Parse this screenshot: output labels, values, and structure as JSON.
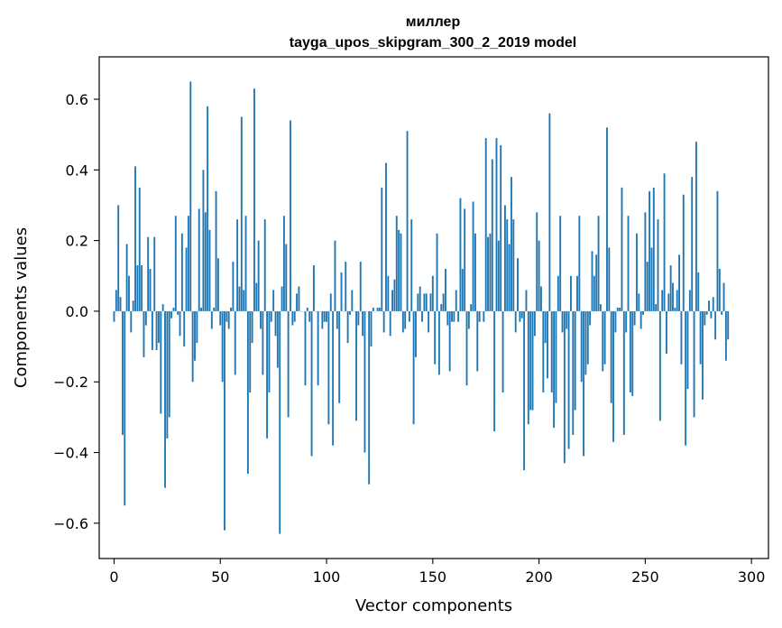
{
  "chart_data": {
    "type": "bar",
    "title": "миллер",
    "subtitle": "tayga_upos_skipgram_300_2_2019 model",
    "xlabel": "Vector components",
    "ylabel": "Components values",
    "xlim": [
      -7,
      308
    ],
    "ylim": [
      -0.7,
      0.72
    ],
    "xticks": [
      0,
      50,
      100,
      150,
      200,
      250,
      300
    ],
    "xtick_labels": [
      "0",
      "50",
      "100",
      "150",
      "200",
      "250",
      "300"
    ],
    "yticks": [
      -0.6,
      -0.4,
      -0.2,
      0.0,
      0.2,
      0.4,
      0.6
    ],
    "ytick_labels": [
      "−0.6",
      "−0.4",
      "−0.2",
      "0.0",
      "0.2",
      "0.4",
      "0.6"
    ],
    "grid": false,
    "bar_color": "#1f77b4",
    "values": [
      -0.03,
      0.06,
      0.3,
      0.04,
      -0.35,
      -0.55,
      0.19,
      0.1,
      -0.06,
      0.03,
      0.41,
      0.13,
      0.35,
      0.13,
      -0.13,
      -0.04,
      0.21,
      0.12,
      -0.11,
      0.21,
      -0.11,
      -0.09,
      -0.29,
      0.02,
      -0.5,
      -0.36,
      -0.3,
      -0.02,
      0.01,
      0.27,
      -0.01,
      -0.07,
      0.22,
      -0.1,
      0.18,
      0.27,
      0.65,
      -0.2,
      -0.14,
      -0.09,
      0.29,
      0.01,
      0.4,
      0.28,
      0.58,
      0.23,
      -0.05,
      0.01,
      0.34,
      0.15,
      -0.04,
      -0.2,
      -0.62,
      -0.03,
      -0.05,
      0.01,
      0.14,
      -0.18,
      0.26,
      0.07,
      0.55,
      0.06,
      0.27,
      -0.46,
      -0.23,
      -0.09,
      0.63,
      0.08,
      0.2,
      -0.05,
      -0.18,
      0.26,
      -0.36,
      -0.23,
      -0.03,
      0.06,
      -0.07,
      -0.16,
      -0.63,
      0.07,
      0.27,
      0.19,
      -0.3,
      0.54,
      -0.04,
      -0.03,
      0.05,
      0.07,
      0.0,
      0.0,
      -0.21,
      0.01,
      -0.03,
      -0.41,
      0.13,
      0.0,
      -0.21,
      0.0,
      -0.05,
      -0.03,
      -0.03,
      -0.32,
      0.05,
      -0.38,
      0.2,
      -0.05,
      -0.26,
      0.11,
      0.0,
      0.14,
      -0.09,
      -0.01,
      0.06,
      0.0,
      -0.31,
      -0.04,
      0.14,
      -0.07,
      -0.4,
      0.0,
      -0.49,
      -0.1,
      0.01,
      0.0,
      0.01,
      0.01,
      0.35,
      -0.06,
      0.42,
      0.1,
      -0.07,
      0.06,
      0.09,
      0.27,
      0.23,
      0.22,
      -0.06,
      -0.05,
      0.51,
      -0.03,
      0.26,
      -0.32,
      -0.13,
      0.05,
      0.07,
      -0.03,
      0.05,
      0.05,
      -0.06,
      0.05,
      0.1,
      -0.15,
      0.22,
      -0.18,
      0.02,
      0.05,
      0.12,
      -0.04,
      -0.17,
      -0.03,
      -0.03,
      0.06,
      -0.03,
      0.32,
      0.12,
      0.29,
      -0.21,
      -0.05,
      0.02,
      0.31,
      0.22,
      -0.17,
      -0.03,
      0.0,
      -0.03,
      0.49,
      0.21,
      0.22,
      0.43,
      -0.34,
      0.49,
      0.2,
      0.47,
      -0.23,
      0.3,
      0.26,
      0.19,
      0.38,
      0.26,
      -0.06,
      0.15,
      -0.03,
      -0.02,
      -0.45,
      0.06,
      -0.32,
      -0.28,
      -0.28,
      -0.07,
      0.28,
      0.2,
      0.07,
      -0.23,
      -0.09,
      -0.19,
      0.56,
      -0.23,
      -0.33,
      -0.26,
      0.1,
      0.27,
      -0.06,
      -0.43,
      -0.05,
      -0.39,
      0.1,
      -0.35,
      -0.28,
      0.1,
      0.27,
      -0.2,
      -0.41,
      -0.18,
      -0.15,
      -0.04,
      0.17,
      0.1,
      0.16,
      0.27,
      0.02,
      -0.17,
      -0.15,
      0.52,
      0.18,
      -0.26,
      -0.37,
      -0.06,
      0.01,
      0.01,
      0.35,
      -0.35,
      -0.06,
      0.27,
      -0.23,
      -0.24,
      -0.04,
      0.22,
      0.05,
      -0.05,
      -0.01,
      0.28,
      0.14,
      0.34,
      0.18,
      0.35,
      0.02,
      0.26,
      -0.31,
      0.06,
      0.39,
      -0.12,
      0.05,
      0.13,
      0.08,
      0.01,
      0.06,
      0.16,
      -0.15,
      0.33,
      -0.38,
      -0.22,
      0.06,
      0.38,
      -0.3,
      0.48,
      0.11,
      -0.15,
      -0.25,
      -0.04,
      -0.01,
      0.03,
      -0.02,
      0.04,
      -0.08,
      0.34,
      0.12,
      -0.01,
      0.08,
      -0.14,
      -0.08
    ]
  }
}
